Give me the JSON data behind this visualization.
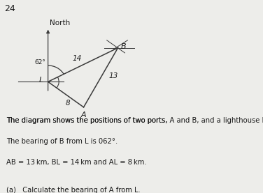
{
  "question_number": "24",
  "bg_color": "#ededea",
  "bearing_LB_deg": 62,
  "BL_km": 14,
  "AB_km": 13,
  "AL_km": 8,
  "label_L": "L",
  "label_A": "A",
  "label_B": "B",
  "label_14": "14",
  "label_13": "13",
  "label_8": "8",
  "label_62": "62°",
  "north_text": "North",
  "text_line1": "The diagram shows the positions of two ports, ",
  "text_line1b": "A",
  "text_line1c": " and ",
  "text_line1d": "B",
  "text_line1e": ", and a lighthouse ",
  "text_line1f": "L",
  "text_line1g": ".",
  "text_line2a": "The bearing of ",
  "text_line2b": "B",
  "text_line2c": " from ",
  "text_line2d": "L",
  "text_line2e": " is 062°.",
  "text_line3a": "AB",
  "text_line3b": " = 13 km, ",
  "text_line3c": "BL",
  "text_line3d": " = 14 km and ",
  "text_line3e": "AL",
  "text_line3f": " = 8 km.",
  "question_a1": "(a)   Calculate the bearing of ",
  "question_a2": "A",
  "question_a3": " from ",
  "question_a4": "L",
  "question_a5": ".",
  "line_color": "#3a3a3a",
  "text_color": "#1a1a1a",
  "font_size_labels": 8,
  "font_size_text": 7.2,
  "font_size_number": 9
}
